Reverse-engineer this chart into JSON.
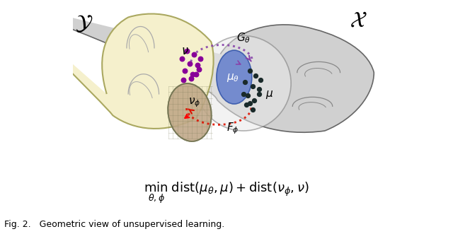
{
  "fig_width": 6.4,
  "fig_height": 3.31,
  "dpi": 100,
  "bg_color": "#ffffff",
  "caption": "Fig. 2.   Geometric view of unsupervised learning.",
  "caption_fontsize": 9,
  "formula_fontsize": 13,
  "calligraphic_fontsize": 22,
  "arc_top_color": "#8844aa",
  "arc_bot_color": "#dd1100",
  "yellow_color": "#f5f0cc",
  "gray_manifold_color": "#d0d0d0",
  "brown_color": "#c0a888",
  "blue_color": "#6680cc",
  "purple_color": "#880099",
  "black_dot_color": "#1a2a2a"
}
